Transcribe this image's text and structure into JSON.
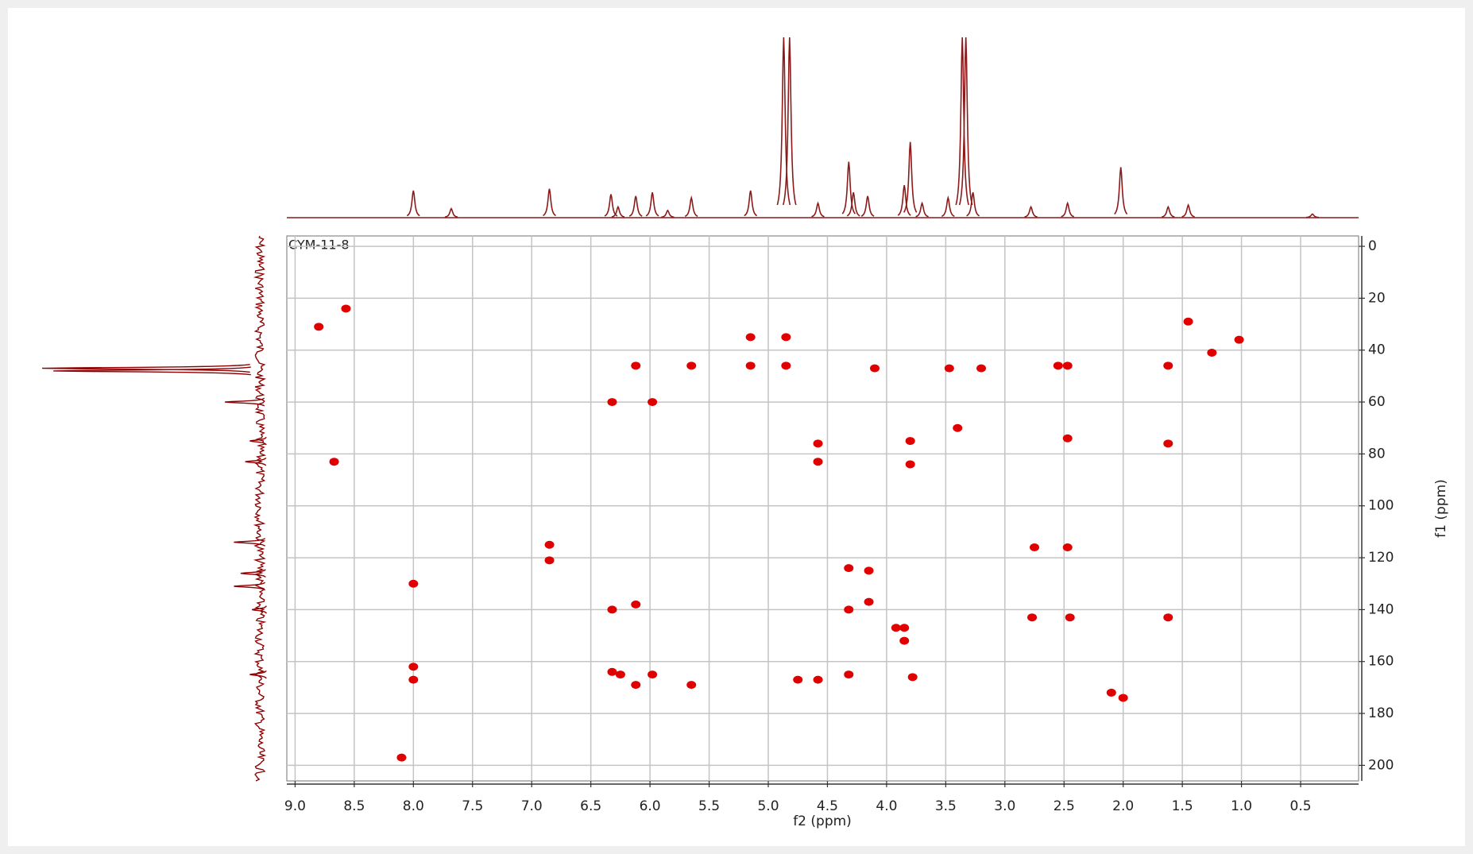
{
  "chart_data": {
    "type": "scatter",
    "sample_label": "CYM-11-8",
    "xlabel": "f2 (ppm)",
    "ylabel": "f1 (ppm)",
    "xlim": [
      9.07,
      0.01
    ],
    "ylim": [
      206,
      -4
    ],
    "xticks": [
      {
        "value": 9,
        "label": "9.0"
      },
      8.5,
      {
        "value": 8,
        "label": "8.0"
      },
      7.5,
      {
        "value": 7,
        "label": "7.0"
      },
      6.5,
      {
        "value": 6,
        "label": "6.0"
      },
      5.5,
      {
        "value": 5,
        "label": "5.0"
      },
      4.5,
      {
        "value": 4,
        "label": "4.0"
      },
      3.5,
      {
        "value": 3,
        "label": "3.0"
      },
      2.5,
      {
        "value": 2,
        "label": "2.0"
      },
      1.5,
      {
        "value": 1,
        "label": "1.0"
      },
      0.5
    ],
    "yticks": [
      0,
      20,
      40,
      60,
      80,
      100,
      120,
      140,
      160,
      180,
      200
    ],
    "grid": true,
    "series": [
      {
        "color": "#e00000",
        "x": [
          8.0,
          8.0,
          8.0,
          6.85,
          6.85,
          6.32,
          6.32,
          6.25,
          6.32,
          6.12,
          6.12,
          6.12,
          5.98,
          5.98,
          5.65,
          5.65,
          5.15,
          5.15,
          4.85,
          4.85,
          4.75,
          4.58,
          4.58,
          4.58,
          4.32,
          4.32,
          4.32,
          4.15,
          4.15,
          4.1,
          3.92,
          3.85,
          3.85,
          3.8,
          3.8,
          3.78,
          3.4,
          3.47,
          3.2,
          2.77,
          2.75,
          2.47,
          2.47,
          2.47,
          2.45,
          2.55,
          2.1,
          2.0,
          1.62,
          1.62,
          1.62,
          1.45,
          1.25,
          1.02,
          8.57,
          8.8,
          8.1,
          8.67
        ],
        "values": [
          162,
          167,
          130,
          115,
          121,
          60,
          164,
          165,
          140,
          46,
          138,
          169,
          60,
          165,
          46,
          169,
          35,
          46,
          35,
          46,
          167,
          76,
          83,
          167,
          124,
          140,
          165,
          125,
          137,
          47,
          147,
          147,
          152,
          75,
          84,
          166,
          70,
          47,
          47,
          143,
          116,
          46,
          74,
          116,
          143,
          46,
          172,
          174,
          46,
          76,
          143,
          29,
          41,
          36,
          24,
          31,
          197,
          83
        ]
      }
    ],
    "top_projection": {
      "color": "#8b1a1a",
      "x": [
        8.0,
        7.68,
        6.85,
        6.33,
        6.27,
        6.12,
        5.98,
        5.85,
        5.65,
        5.15,
        4.87,
        4.82,
        4.58,
        4.32,
        4.28,
        4.16,
        3.85,
        3.8,
        3.7,
        3.48,
        3.36,
        3.33,
        3.27,
        2.78,
        2.47,
        2.02,
        1.62,
        1.45,
        0.4
      ],
      "values": [
        15,
        5,
        16,
        13,
        6,
        12,
        14,
        4,
        11,
        15,
        100,
        100,
        8,
        31,
        14,
        12,
        18,
        42,
        8,
        11,
        100,
        100,
        14,
        6,
        8,
        28,
        6,
        7,
        2
      ]
    },
    "left_projection": {
      "color": "#8b0000",
      "x": [
        47,
        48,
        60,
        75,
        83,
        114,
        126,
        131,
        140,
        165
      ],
      "values": [
        100,
        95,
        19,
        8,
        10,
        15,
        12,
        15,
        7,
        8
      ]
    }
  }
}
